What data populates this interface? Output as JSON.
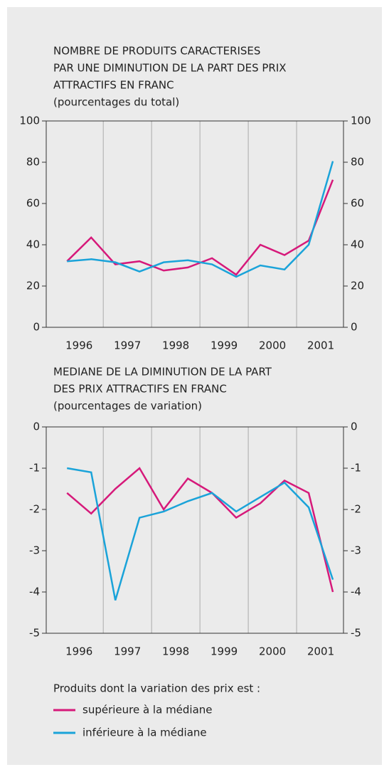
{
  "chart_data": [
    {
      "type": "line",
      "title": [
        "NOMBRE DE PRODUITS CARACTERISES",
        "PAR UNE DIMINUTION DE LA PART DES PRIX",
        "ATTRACTIFS EN FRANC"
      ],
      "subtitle": "(pourcentages du total)",
      "x": [
        1996.25,
        1996.75,
        1997.25,
        1997.75,
        1998.25,
        1998.75,
        1999.25,
        1999.75,
        2000.25,
        2000.75,
        2001.25,
        2001.75
      ],
      "xlim": [
        1995.82,
        2001.97
      ],
      "xticks": [
        {
          "value": 1996.5,
          "label": "1996"
        },
        {
          "value": 1997.5,
          "label": "1997"
        },
        {
          "value": 1998.5,
          "label": "1998"
        },
        {
          "value": 1999.5,
          "label": "1999"
        },
        {
          "value": 2000.5,
          "label": "2000"
        },
        {
          "value": 2001.5,
          "label": "2001"
        }
      ],
      "vlines": [
        1997,
        1998,
        1999,
        2000,
        2001
      ],
      "ylim": [
        0,
        100
      ],
      "yticks": [
        0,
        20,
        40,
        60,
        80,
        100
      ],
      "series": [
        {
          "name": "supérieure à la médiane",
          "color": "#d6197a",
          "values": [
            32,
            43.5,
            30.5,
            32,
            27.5,
            29,
            33.5,
            25.5,
            40,
            35,
            42,
            71.5
          ]
        },
        {
          "name": "inférieure à la médiane",
          "color": "#1aa3d9",
          "values": [
            32,
            33,
            31.5,
            27,
            31.5,
            32.5,
            30.5,
            24.5,
            30,
            28,
            40,
            80.5
          ]
        }
      ]
    },
    {
      "type": "line",
      "title": [
        "MEDIANE DE LA DIMINUTION DE LA PART",
        "DES PRIX ATTRACTIFS EN FRANC"
      ],
      "subtitle": "(pourcentages de variation)",
      "x": [
        1996.25,
        1996.75,
        1997.25,
        1997.75,
        1998.25,
        1998.75,
        1999.25,
        1999.75,
        2000.25,
        2000.75,
        2001.25,
        2001.75
      ],
      "xlim": [
        1995.82,
        2001.97
      ],
      "xticks": [
        {
          "value": 1996.5,
          "label": "1996"
        },
        {
          "value": 1997.5,
          "label": "1997"
        },
        {
          "value": 1998.5,
          "label": "1998"
        },
        {
          "value": 1999.5,
          "label": "1999"
        },
        {
          "value": 2000.5,
          "label": "2000"
        },
        {
          "value": 2001.5,
          "label": "2001"
        }
      ],
      "vlines": [
        1997,
        1998,
        1999,
        2000,
        2001
      ],
      "ylim": [
        -5,
        0
      ],
      "yticks": [
        0,
        -1,
        -2,
        -3,
        -4,
        -5
      ],
      "series": [
        {
          "name": "supérieure à la médiane",
          "color": "#d6197a",
          "values": [
            -1.6,
            -2.1,
            -1.5,
            -1.0,
            -2.0,
            -1.25,
            -1.6,
            -2.2,
            -1.85,
            -1.3,
            -1.6,
            -4.0
          ]
        },
        {
          "name": "inférieure à la médiane",
          "color": "#1aa3d9",
          "values": [
            -1.0,
            -1.1,
            -4.2,
            -2.2,
            -2.05,
            -1.8,
            -1.6,
            -2.05,
            -1.7,
            -1.35,
            -1.95,
            -3.7
          ]
        }
      ]
    }
  ],
  "legend_title": "Produits dont la variation des prix est :"
}
